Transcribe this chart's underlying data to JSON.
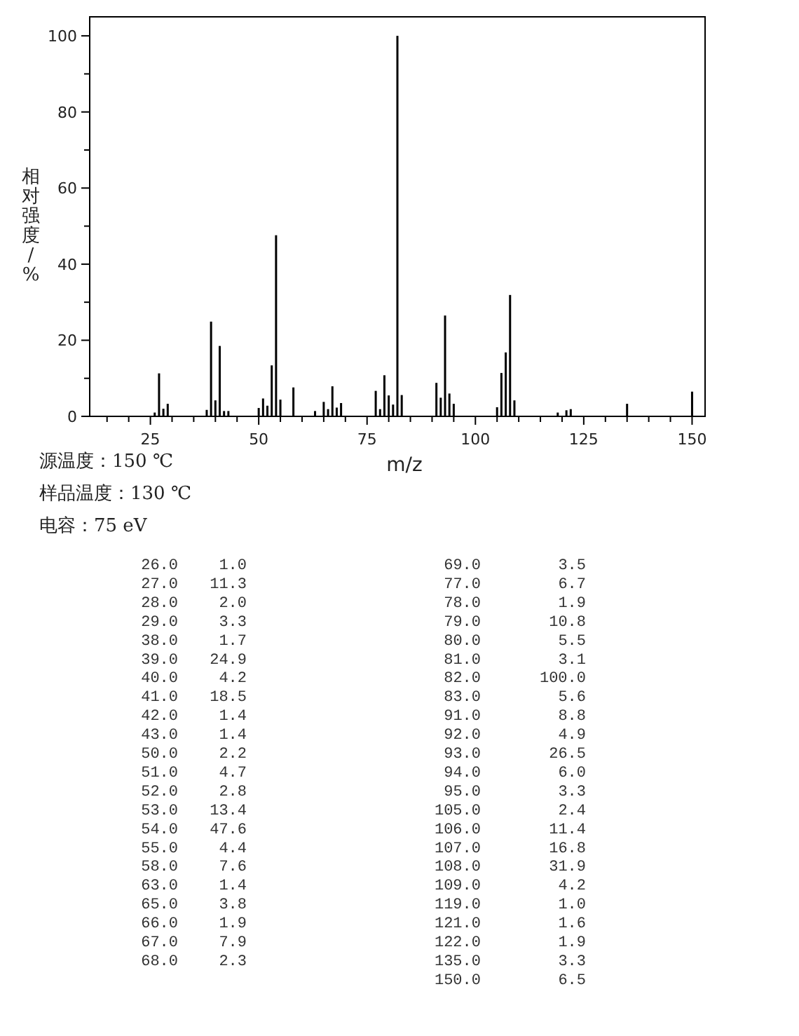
{
  "chart_data": [
    {
      "type": "bar",
      "xlabel": "m/z",
      "ylabel": "相对强度/%",
      "color": "#000000",
      "x": [
        26,
        27,
        28,
        29,
        38,
        39,
        40,
        41,
        42,
        43,
        50,
        51,
        52,
        53,
        54,
        55,
        58,
        63,
        65,
        66,
        67,
        68,
        69,
        77,
        78,
        79,
        80,
        81,
        82,
        83,
        91,
        92,
        93,
        94,
        95,
        105,
        106,
        107,
        108,
        109,
        119,
        121,
        122,
        135,
        150
      ],
      "values": [
        1.0,
        11.3,
        2.0,
        3.3,
        1.7,
        24.9,
        4.2,
        18.5,
        1.4,
        1.4,
        2.2,
        4.7,
        2.8,
        13.4,
        47.6,
        4.4,
        7.6,
        1.4,
        3.8,
        1.9,
        7.9,
        2.3,
        3.5,
        6.7,
        1.9,
        10.8,
        5.5,
        3.1,
        100.0,
        5.6,
        8.8,
        4.9,
        26.5,
        6.0,
        3.3,
        2.4,
        11.4,
        16.8,
        31.9,
        4.2,
        1.0,
        1.6,
        1.9,
        3.3,
        6.5
      ],
      "xlim": [
        11,
        153
      ],
      "ylim": [
        0,
        105
      ],
      "xticks": [
        {
          "value": 15,
          "label": null
        },
        {
          "value": 20,
          "label": null
        },
        25,
        {
          "value": 30,
          "label": null
        },
        {
          "value": 35,
          "label": null
        },
        {
          "value": 40,
          "label": null
        },
        {
          "value": 45,
          "label": null
        },
        50,
        {
          "value": 55,
          "label": null
        },
        {
          "value": 60,
          "label": null
        },
        {
          "value": 65,
          "label": null
        },
        {
          "value": 70,
          "label": null
        },
        75,
        {
          "value": 80,
          "label": null
        },
        {
          "value": 85,
          "label": null
        },
        {
          "value": 90,
          "label": null
        },
        {
          "value": 95,
          "label": null
        },
        100,
        {
          "value": 105,
          "label": null
        },
        {
          "value": 110,
          "label": null
        },
        {
          "value": 115,
          "label": null
        },
        {
          "value": 120,
          "label": null
        },
        125,
        {
          "value": 130,
          "label": null
        },
        {
          "value": 135,
          "label": null
        },
        {
          "value": 140,
          "label": null
        },
        {
          "value": 145,
          "label": null
        },
        150
      ],
      "yticks": [
        0,
        {
          "value": 10,
          "label": null
        },
        20,
        {
          "value": 30,
          "label": null
        },
        40,
        {
          "value": 50,
          "label": null
        },
        60,
        {
          "value": 70,
          "label": null
        },
        80,
        {
          "value": 90,
          "label": null
        },
        100
      ],
      "annotations": [
        "源温度：150 ℃",
        "样品温度：130 ℃",
        "电容：75 eV"
      ]
    },
    {
      "type": "other",
      "annotations": [
        "26.0",
        "1.0",
        "27.0",
        "11.3",
        "28.0",
        "2.0",
        "29.0",
        "3.3",
        "38.0",
        "1.7",
        "39.0",
        "24.9",
        "40.0",
        "4.2",
        "41.0",
        "18.5",
        "42.0",
        "1.4",
        "43.0",
        "1.4",
        "50.0",
        "2.2",
        "51.0",
        "4.7",
        "52.0",
        "2.8",
        "53.0",
        "13.4",
        "54.0",
        "47.6",
        "55.0",
        "4.4",
        "58.0",
        "7.6",
        "63.0",
        "1.4",
        "65.0",
        "3.8",
        "66.0",
        "1.9",
        "67.0",
        "7.9",
        "68.0",
        "2.3",
        "69.0",
        "3.5",
        "77.0",
        "6.7",
        "78.0",
        "1.9",
        "79.0",
        "10.8",
        "80.0",
        "5.5",
        "81.0",
        "3.1",
        "82.0",
        "100.0",
        "83.0",
        "5.6",
        "91.0",
        "8.8",
        "92.0",
        "4.9",
        "93.0",
        "26.5",
        "94.0",
        "6.0",
        "95.0",
        "3.3",
        "105.0",
        "2.4",
        "106.0",
        "11.4",
        "107.0",
        "16.8",
        "108.0",
        "31.9",
        "109.0",
        "4.2",
        "119.0",
        "1.0",
        "121.0",
        "1.6",
        "122.0",
        "1.9",
        "135.0",
        "3.3",
        "150.0",
        "6.5"
      ]
    }
  ]
}
